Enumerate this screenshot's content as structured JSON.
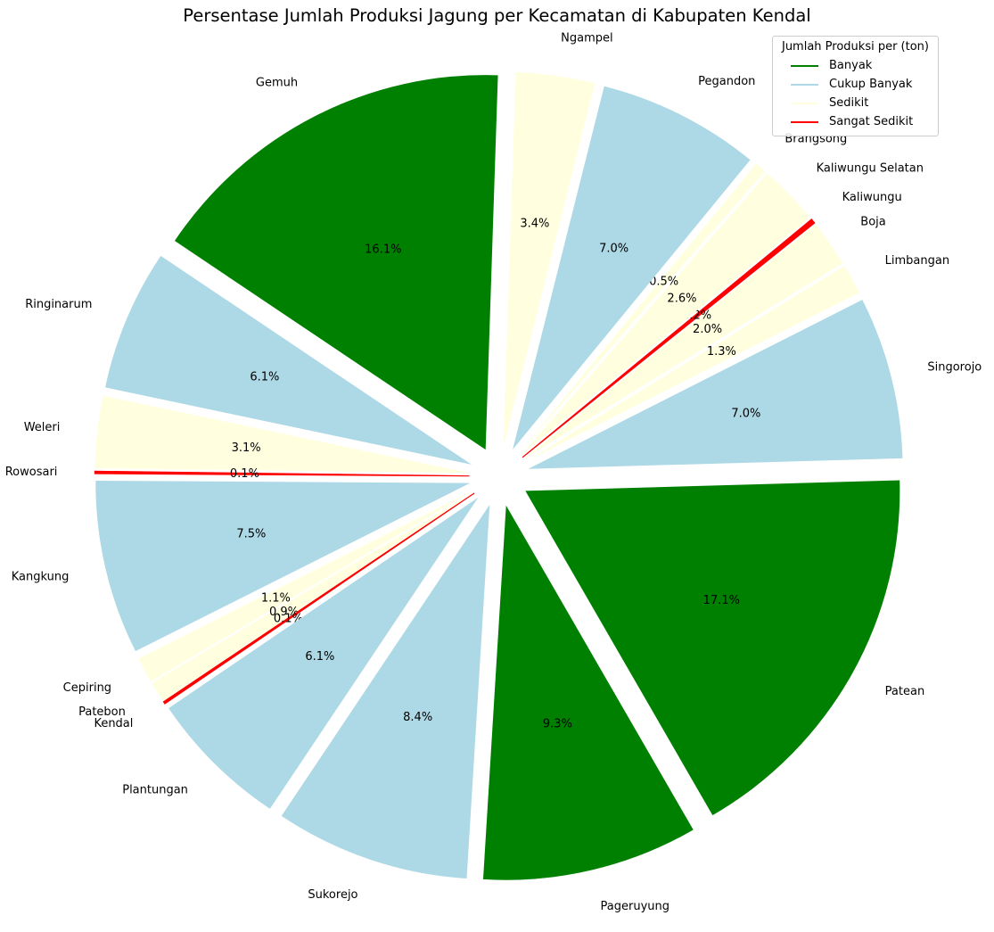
{
  "chart_data": {
    "type": "pie",
    "title": "Persentase Jumlah Produksi Jagung per Kecamatan di Kabupaten Kendal",
    "legend_title": "Jumlah Produksi per (ton)",
    "legend_placement": "top-right",
    "categories_legend": [
      {
        "label": "Banyak",
        "color": "#008000"
      },
      {
        "label": "Cukup Banyak",
        "color": "#add8e6"
      },
      {
        "label": "Sedikit",
        "color": "#ffffe0"
      },
      {
        "label": "Sangat Sedikit",
        "color": "#ff0000"
      }
    ],
    "slices": [
      {
        "label": "Patean",
        "pct_label": "17.1%",
        "value": 17.1,
        "category": "Banyak"
      },
      {
        "label": "Singorojo",
        "pct_label": "7.0%",
        "value": 7.0,
        "category": "Cukup Banyak"
      },
      {
        "label": "Limbangan",
        "pct_label": "1.3%",
        "value": 1.3,
        "category": "Sedikit"
      },
      {
        "label": "Boja",
        "pct_label": "2.0%",
        "value": 2.0,
        "category": "Sedikit"
      },
      {
        "label": "Kaliwungu",
        "pct_label": "0.2%",
        "value": 0.2,
        "category": "Sangat Sedikit"
      },
      {
        "label": "Kaliwungu Selatan",
        "pct_label": "2.6%",
        "value": 2.6,
        "category": "Sedikit"
      },
      {
        "label": "Brangsong",
        "pct_label": "0.5%",
        "value": 0.5,
        "category": "Sedikit"
      },
      {
        "label": "Pegandon",
        "pct_label": "7.0%",
        "value": 7.0,
        "category": "Cukup Banyak"
      },
      {
        "label": "Ngampel",
        "pct_label": "3.4%",
        "value": 3.4,
        "category": "Sedikit"
      },
      {
        "label": "Gemuh",
        "pct_label": "16.1%",
        "value": 16.1,
        "category": "Banyak"
      },
      {
        "label": "Ringinarum",
        "pct_label": "6.1%",
        "value": 6.1,
        "category": "Cukup Banyak"
      },
      {
        "label": "Weleri",
        "pct_label": "3.1%",
        "value": 3.1,
        "category": "Sedikit"
      },
      {
        "label": "Rowosari",
        "pct_label": "0.1%",
        "value": 0.1,
        "category": "Sangat Sedikit"
      },
      {
        "label": "Kangkung",
        "pct_label": "7.5%",
        "value": 7.5,
        "category": "Cukup Banyak"
      },
      {
        "label": "Cepiring",
        "pct_label": "1.1%",
        "value": 1.1,
        "category": "Sedikit"
      },
      {
        "label": "Patebon",
        "pct_label": "0.9%",
        "value": 0.9,
        "category": "Sedikit"
      },
      {
        "label": "Kendal",
        "pct_label": "0.1%",
        "value": 0.1,
        "category": "Sangat Sedikit"
      },
      {
        "label": "Plantungan",
        "pct_label": "6.1%",
        "value": 6.1,
        "category": "Cukup Banyak"
      },
      {
        "label": "Sukorejo",
        "pct_label": "8.4%",
        "value": 8.4,
        "category": "Cukup Banyak"
      },
      {
        "label": "Pageruyung",
        "pct_label": "9.3%",
        "value": 9.3,
        "category": "Banyak"
      }
    ]
  }
}
